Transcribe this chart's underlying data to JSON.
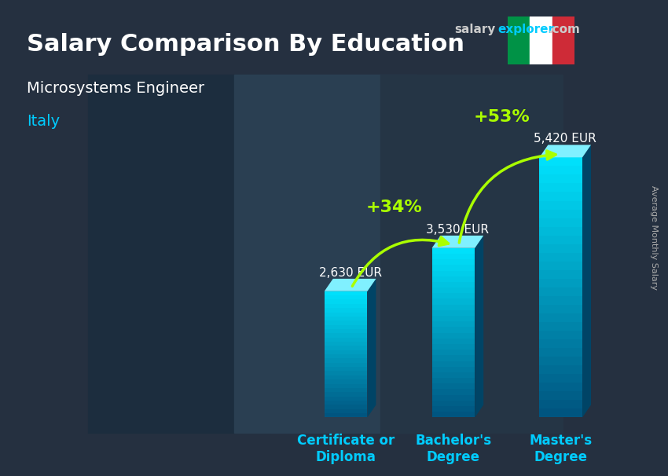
{
  "title": "Salary Comparison By Education",
  "subtitle": "Microsystems Engineer",
  "country": "Italy",
  "watermark": "salaryexplorer.com",
  "ylabel": "Average Monthly Salary",
  "categories": [
    "Certificate or\nDiploma",
    "Bachelor's\nDegree",
    "Master's\nDegree"
  ],
  "values": [
    2630,
    3530,
    5420
  ],
  "value_labels": [
    "2,630 EUR",
    "3,530 EUR",
    "5,420 EUR"
  ],
  "pct_labels": [
    "+34%",
    "+53%"
  ],
  "bar_color_top": "#00d4ff",
  "bar_color_bottom": "#0080c0",
  "bar_color_side": "#006090",
  "bg_color": "#1a2a3a",
  "title_color": "#ffffff",
  "subtitle_color": "#ffffff",
  "country_color": "#00ccff",
  "value_label_color": "#ffffff",
  "pct_color": "#aaff00",
  "arrow_color": "#aaff00",
  "watermark_color_salary": "#aaaaaa",
  "watermark_color_explorer": "#00ccff",
  "italy_flag_green": "#009246",
  "italy_flag_white": "#ffffff",
  "italy_flag_red": "#ce2b37",
  "ylim": [
    0,
    6500
  ],
  "bar_width": 0.4
}
